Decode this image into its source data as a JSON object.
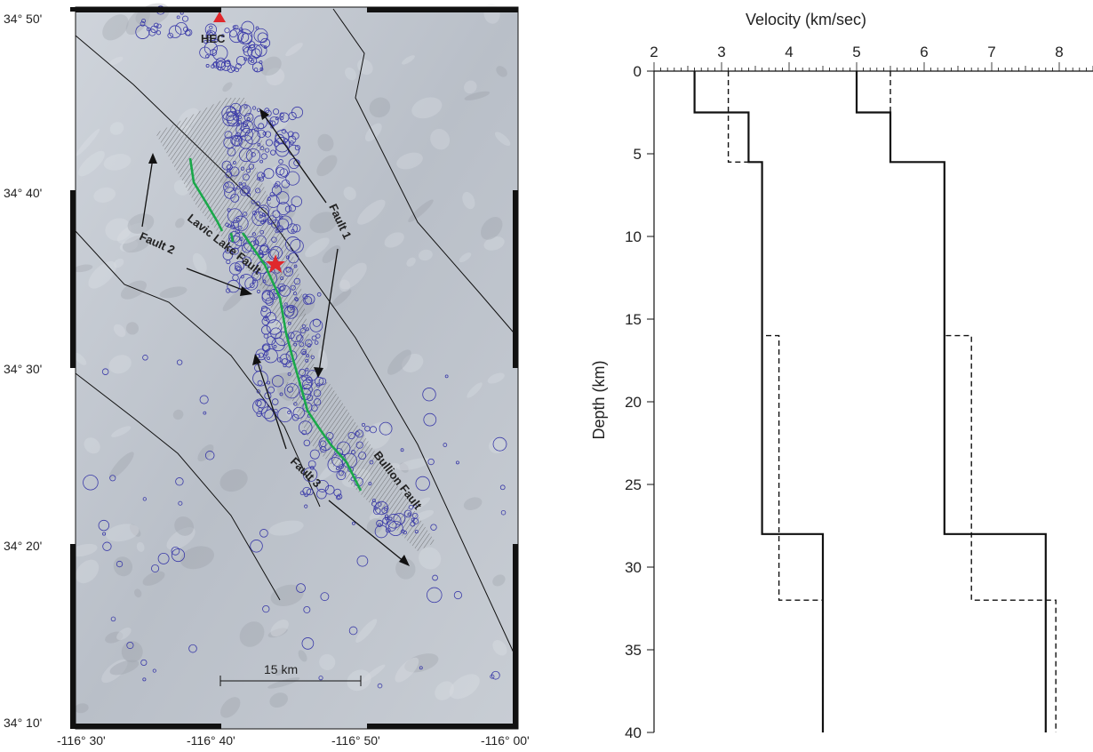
{
  "map": {
    "lat_labels": [
      "34° 50'",
      "34° 40'",
      "34° 30'",
      "34° 20'",
      "34° 10'"
    ],
    "lon_labels": [
      "-116° 30'",
      "-116° 40'",
      "-116° 50'",
      "-116° 00'"
    ],
    "station_label": "HEC",
    "scale_label": "15 km",
    "labels": {
      "fault1": "Fault 1",
      "fault2": "Fault 2",
      "fault3": "Fault 3",
      "lavic": "Lavic Lake Fault",
      "bullion": "Bullion Fault"
    },
    "colors": {
      "relief": "#b9bfc8",
      "epicenters": "#3a3aa8",
      "rupture": "#1aa84a",
      "mainshock": "#e0282c",
      "station": "#e0282c"
    }
  },
  "chart_data": {
    "type": "line",
    "xlabel": "Velocity (km/sec)",
    "ylabel": "Depth (km)",
    "xlim": [
      2,
      8.5
    ],
    "ylim": [
      0,
      40
    ],
    "x_ticks": [
      "2",
      "3",
      "4",
      "5",
      "6",
      "7",
      "8"
    ],
    "y_ticks": [
      "0",
      "5",
      "10",
      "15",
      "20",
      "25",
      "30",
      "35",
      "40"
    ],
    "series": [
      {
        "style": "solid",
        "points": [
          [
            2.6,
            0
          ],
          [
            2.6,
            2.5
          ],
          [
            3.4,
            2.5
          ],
          [
            3.4,
            5.5
          ],
          [
            3.6,
            5.5
          ],
          [
            3.6,
            28
          ],
          [
            4.5,
            28
          ],
          [
            4.5,
            40
          ]
        ]
      },
      {
        "style": "dashed",
        "points": [
          [
            3.1,
            0
          ],
          [
            3.1,
            5.5
          ],
          [
            3.6,
            5.5
          ],
          [
            3.6,
            16
          ],
          [
            3.85,
            16
          ],
          [
            3.85,
            32
          ],
          [
            4.5,
            32
          ],
          [
            4.5,
            40
          ]
        ]
      },
      {
        "style": "solid",
        "points": [
          [
            5.0,
            0
          ],
          [
            5.0,
            2.5
          ],
          [
            5.5,
            2.5
          ],
          [
            5.5,
            5.5
          ],
          [
            6.3,
            5.5
          ],
          [
            6.3,
            28
          ],
          [
            7.8,
            28
          ],
          [
            7.8,
            40
          ]
        ]
      },
      {
        "style": "dashed",
        "points": [
          [
            5.5,
            0
          ],
          [
            5.5,
            5.5
          ],
          [
            6.3,
            5.5
          ],
          [
            6.3,
            16
          ],
          [
            6.7,
            16
          ],
          [
            6.7,
            32
          ],
          [
            7.95,
            32
          ],
          [
            7.95,
            40
          ]
        ]
      }
    ]
  }
}
